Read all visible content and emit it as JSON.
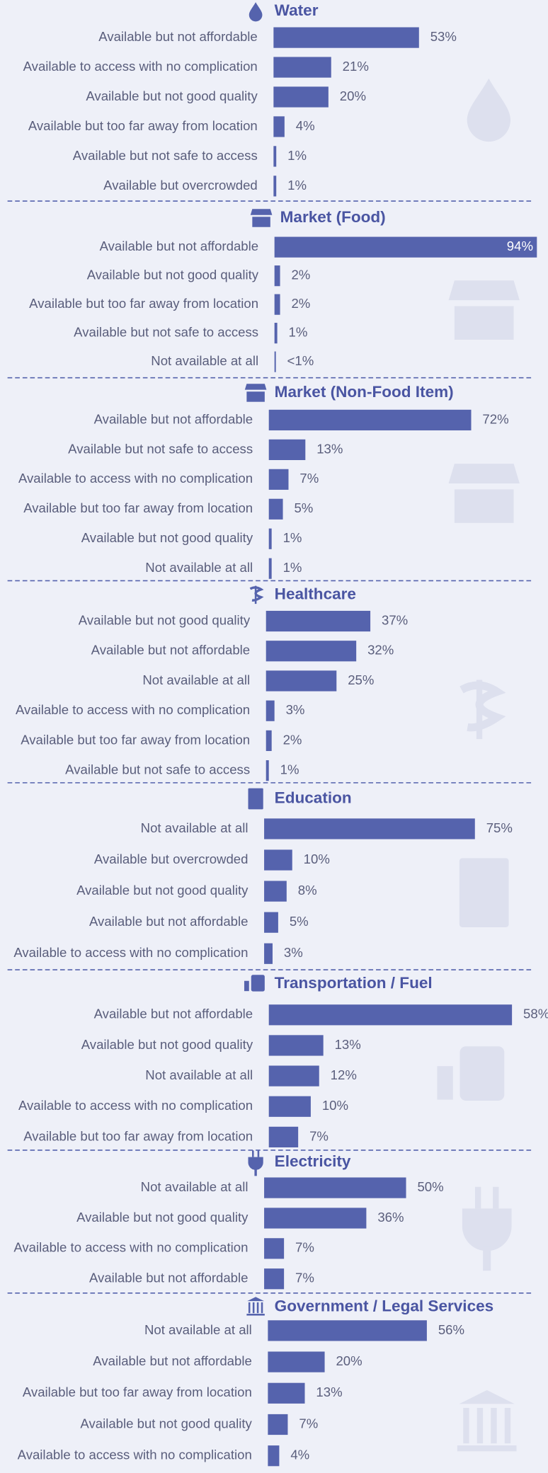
{
  "chart_data": [
    {
      "type": "bar",
      "orientation": "horizontal",
      "title": "Water",
      "color": "#5563ad",
      "categories": [
        "Available but not affordable",
        "Available to access with no complication",
        "Available but not good quality",
        "Available but too far away from location",
        "Available but not safe to access",
        "Available but overcrowded"
      ],
      "values": [
        53,
        21,
        20,
        4,
        1,
        1
      ],
      "value_labels": [
        "53%",
        "21%",
        "20%",
        "4%",
        "1%",
        "1%"
      ]
    },
    {
      "type": "bar",
      "orientation": "horizontal",
      "title": "Market (Food)",
      "color": "#5563ad",
      "categories": [
        "Available but not affordable",
        "Available but not good quality",
        "Available but too far away from location",
        "Available but not safe to access",
        "Not available at all"
      ],
      "values": [
        94,
        2,
        2,
        1,
        0.5
      ],
      "value_labels": [
        "94%",
        "2%",
        "2%",
        "1%",
        "<1%"
      ]
    },
    {
      "type": "bar",
      "orientation": "horizontal",
      "title": "Market (Non-Food Item)",
      "color": "#5563ad",
      "categories": [
        "Available but not affordable",
        "Available but not safe to access",
        "Available to access with no complication",
        "Available but too far away from location",
        "Available but not good quality",
        "Not available at all"
      ],
      "values": [
        72,
        13,
        7,
        5,
        1,
        1
      ],
      "value_labels": [
        "72%",
        "13%",
        "7%",
        "5%",
        "1%",
        "1%"
      ]
    },
    {
      "type": "bar",
      "orientation": "horizontal",
      "title": "Healthcare",
      "color": "#5563ad",
      "categories": [
        "Available but not good quality",
        "Available but not affordable",
        "Not available at all",
        "Available to access with no complication",
        "Available but too far away from location",
        "Available but not safe to access"
      ],
      "values": [
        37,
        32,
        25,
        3,
        2,
        1
      ],
      "value_labels": [
        "37%",
        "32%",
        "25%",
        "3%",
        "2%",
        "1%"
      ]
    },
    {
      "type": "bar",
      "orientation": "horizontal",
      "title": "Education",
      "color": "#5563ad",
      "categories": [
        "Not available at all",
        "Available but overcrowded",
        "Available but not good quality",
        "Available but not affordable",
        "Available to access with no complication"
      ],
      "values": [
        75,
        10,
        8,
        5,
        3
      ],
      "value_labels": [
        "75%",
        "10%",
        "8%",
        "5%",
        "3%"
      ]
    },
    {
      "type": "bar",
      "orientation": "horizontal",
      "title": "Transportation / Fuel",
      "color": "#5563ad",
      "categories": [
        "Available but not affordable",
        "Available but not good quality",
        "Not available at all",
        "Available to access with no complication",
        "Available but too far away from location"
      ],
      "values": [
        58,
        13,
        12,
        10,
        7
      ],
      "value_labels": [
        "58%",
        "13%",
        "12%",
        "10%",
        "7%"
      ]
    },
    {
      "type": "bar",
      "orientation": "horizontal",
      "title": "Electricity",
      "color": "#5563ad",
      "categories": [
        "Not available at all",
        "Available but not good quality",
        "Available to access with no complication",
        "Available but not affordable"
      ],
      "values": [
        50,
        36,
        7,
        7
      ],
      "value_labels": [
        "50%",
        "36%",
        "7%",
        "7%"
      ]
    },
    {
      "type": "bar",
      "orientation": "horizontal",
      "title": "Government / Legal Services",
      "color": "#5563ad",
      "categories": [
        "Not available at all",
        "Available but not affordable",
        "Available but too far away from location",
        "Available but not good quality",
        "Available to access with no complication"
      ],
      "values": [
        56,
        20,
        13,
        7,
        4
      ],
      "value_labels": [
        "56%",
        "20%",
        "13%",
        "7%",
        "4%"
      ]
    }
  ]
}
